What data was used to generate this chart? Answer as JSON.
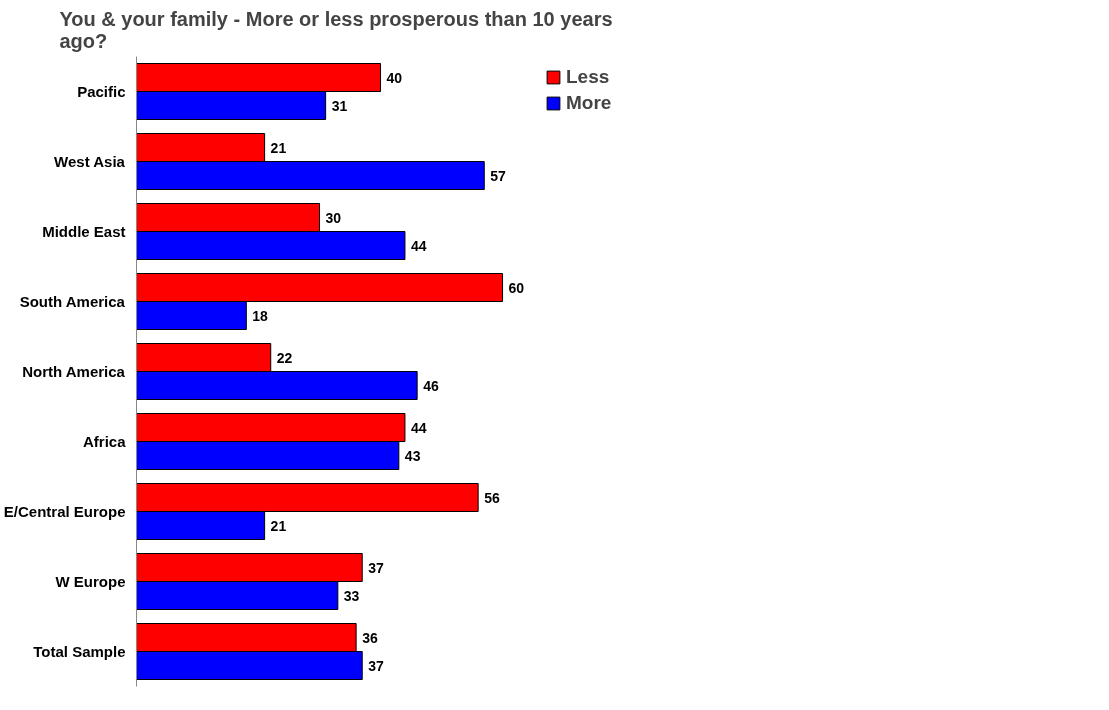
{
  "chart_data": {
    "type": "bar",
    "orientation": "horizontal",
    "title": "You & your family - More or less prosperous than 10 years ago?",
    "categories": [
      "Pacific",
      "West Asia",
      "Middle East",
      "South America",
      "North America",
      "Africa",
      "E/Central Europe",
      "W Europe",
      "Total Sample"
    ],
    "series": [
      {
        "name": "Less",
        "color": "#ff0000",
        "values": [
          40,
          21,
          30,
          60,
          22,
          44,
          56,
          37,
          36
        ]
      },
      {
        "name": "More",
        "color": "#0000ff",
        "values": [
          31,
          57,
          44,
          18,
          46,
          43,
          21,
          33,
          37
        ]
      }
    ],
    "data_labels": true,
    "legend": "top right",
    "grid": false,
    "tick_labels": "y"
  }
}
